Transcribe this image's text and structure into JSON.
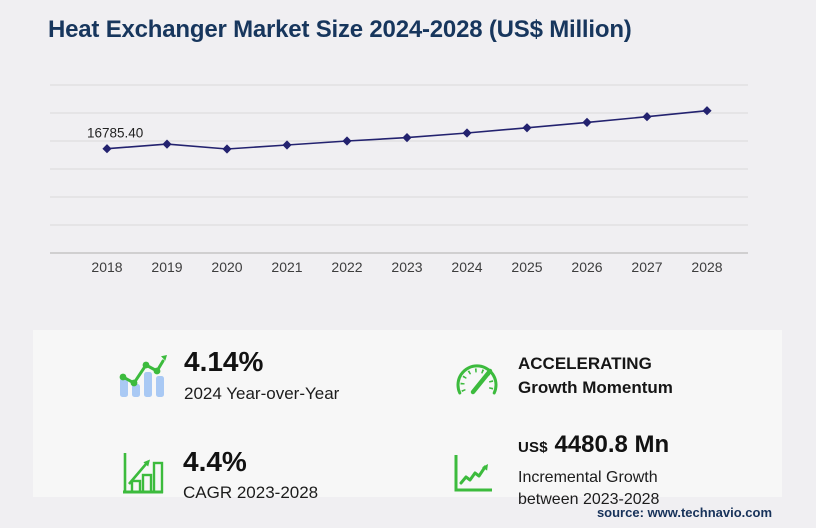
{
  "title": "Heat Exchanger Market Size 2024-2028 (US$ Million)",
  "source": "source: www.technavio.com",
  "colors": {
    "line": "#23226f",
    "title": "#17365d",
    "green": "#3cbb3d",
    "bar_blue": "#a9c9f4",
    "grid": "#dadada",
    "axis": "#bcbcbc"
  },
  "chart_data": {
    "type": "line",
    "title": "Heat Exchanger Market Size 2024-2028 (US$ Million)",
    "x": [
      2018,
      2019,
      2020,
      2021,
      2022,
      2023,
      2024,
      2025,
      2026,
      2027,
      2028
    ],
    "values": [
      16785.4,
      17550,
      16740,
      17400,
      18070,
      18631,
      19402,
      20270,
      21175,
      22120,
      23112
    ],
    "first_point_label": "16785.40",
    "xlabel": "",
    "ylabel": "",
    "ylim": [
      0,
      28000
    ],
    "grid": true,
    "legend": false,
    "marker": "diamond"
  },
  "stats": [
    {
      "icon": "bar-trend-icon",
      "value": "4.14%",
      "label": "2024 Year-over-Year"
    },
    {
      "icon": "gauge-icon",
      "value": "ACCELERATING",
      "label": "Growth Momentum"
    },
    {
      "icon": "bar-growth-icon",
      "value": "4.4%",
      "label": "CAGR 2023-2028"
    },
    {
      "icon": "line-growth-icon",
      "prefix": "US$",
      "value": "4480.8 Mn",
      "label": "Incremental Growth",
      "label2": "between 2023-2028"
    }
  ]
}
